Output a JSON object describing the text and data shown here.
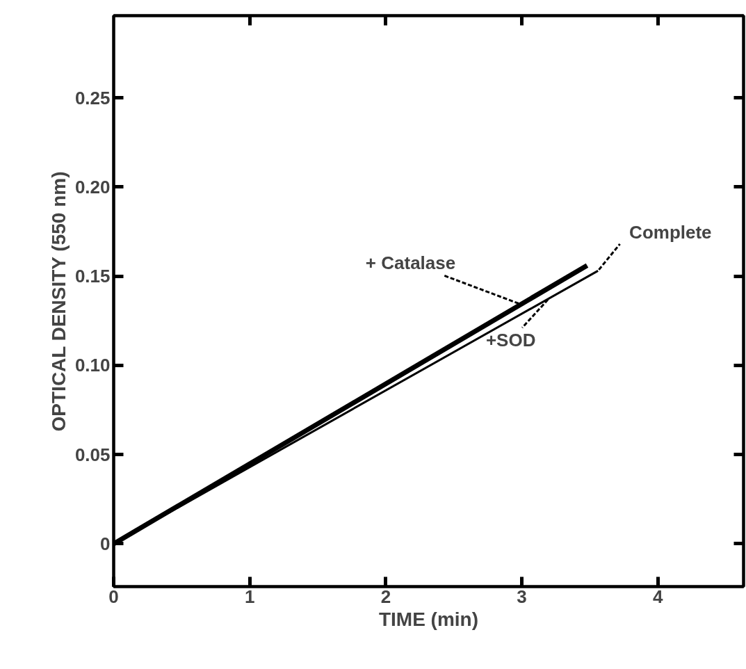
{
  "chart_data": {
    "type": "line",
    "xlabel": "TIME (min)",
    "ylabel": "OPTICAL DENSITY (550 nm)",
    "xlim": [
      0,
      4.63
    ],
    "ylim": [
      -0.024,
      0.296
    ],
    "xticks": [
      0,
      1,
      2,
      3,
      4
    ],
    "yticks": [
      0,
      0.05,
      {
        "value": 0.1,
        "label": "0.10"
      },
      0.15,
      {
        "value": 0.2,
        "label": "0.20"
      },
      0.25
    ],
    "series": [
      {
        "color": "#000000",
        "x": [
          0,
          3.48
        ],
        "values": [
          0,
          0.156
        ]
      },
      {
        "color": "#000000",
        "x": [
          0,
          3.56
        ],
        "values": [
          0,
          0.153
        ]
      }
    ],
    "annotations": [
      {
        "text": "+ Catalase",
        "x": 3.0,
        "y": 0.134
      },
      {
        "text": "Complete",
        "x": 3.56,
        "y": 0.153
      },
      {
        "text": "+SOD",
        "x": 3.2,
        "y": 0.1375
      }
    ],
    "grid": false,
    "marker": "none",
    "line_style": "solid"
  }
}
